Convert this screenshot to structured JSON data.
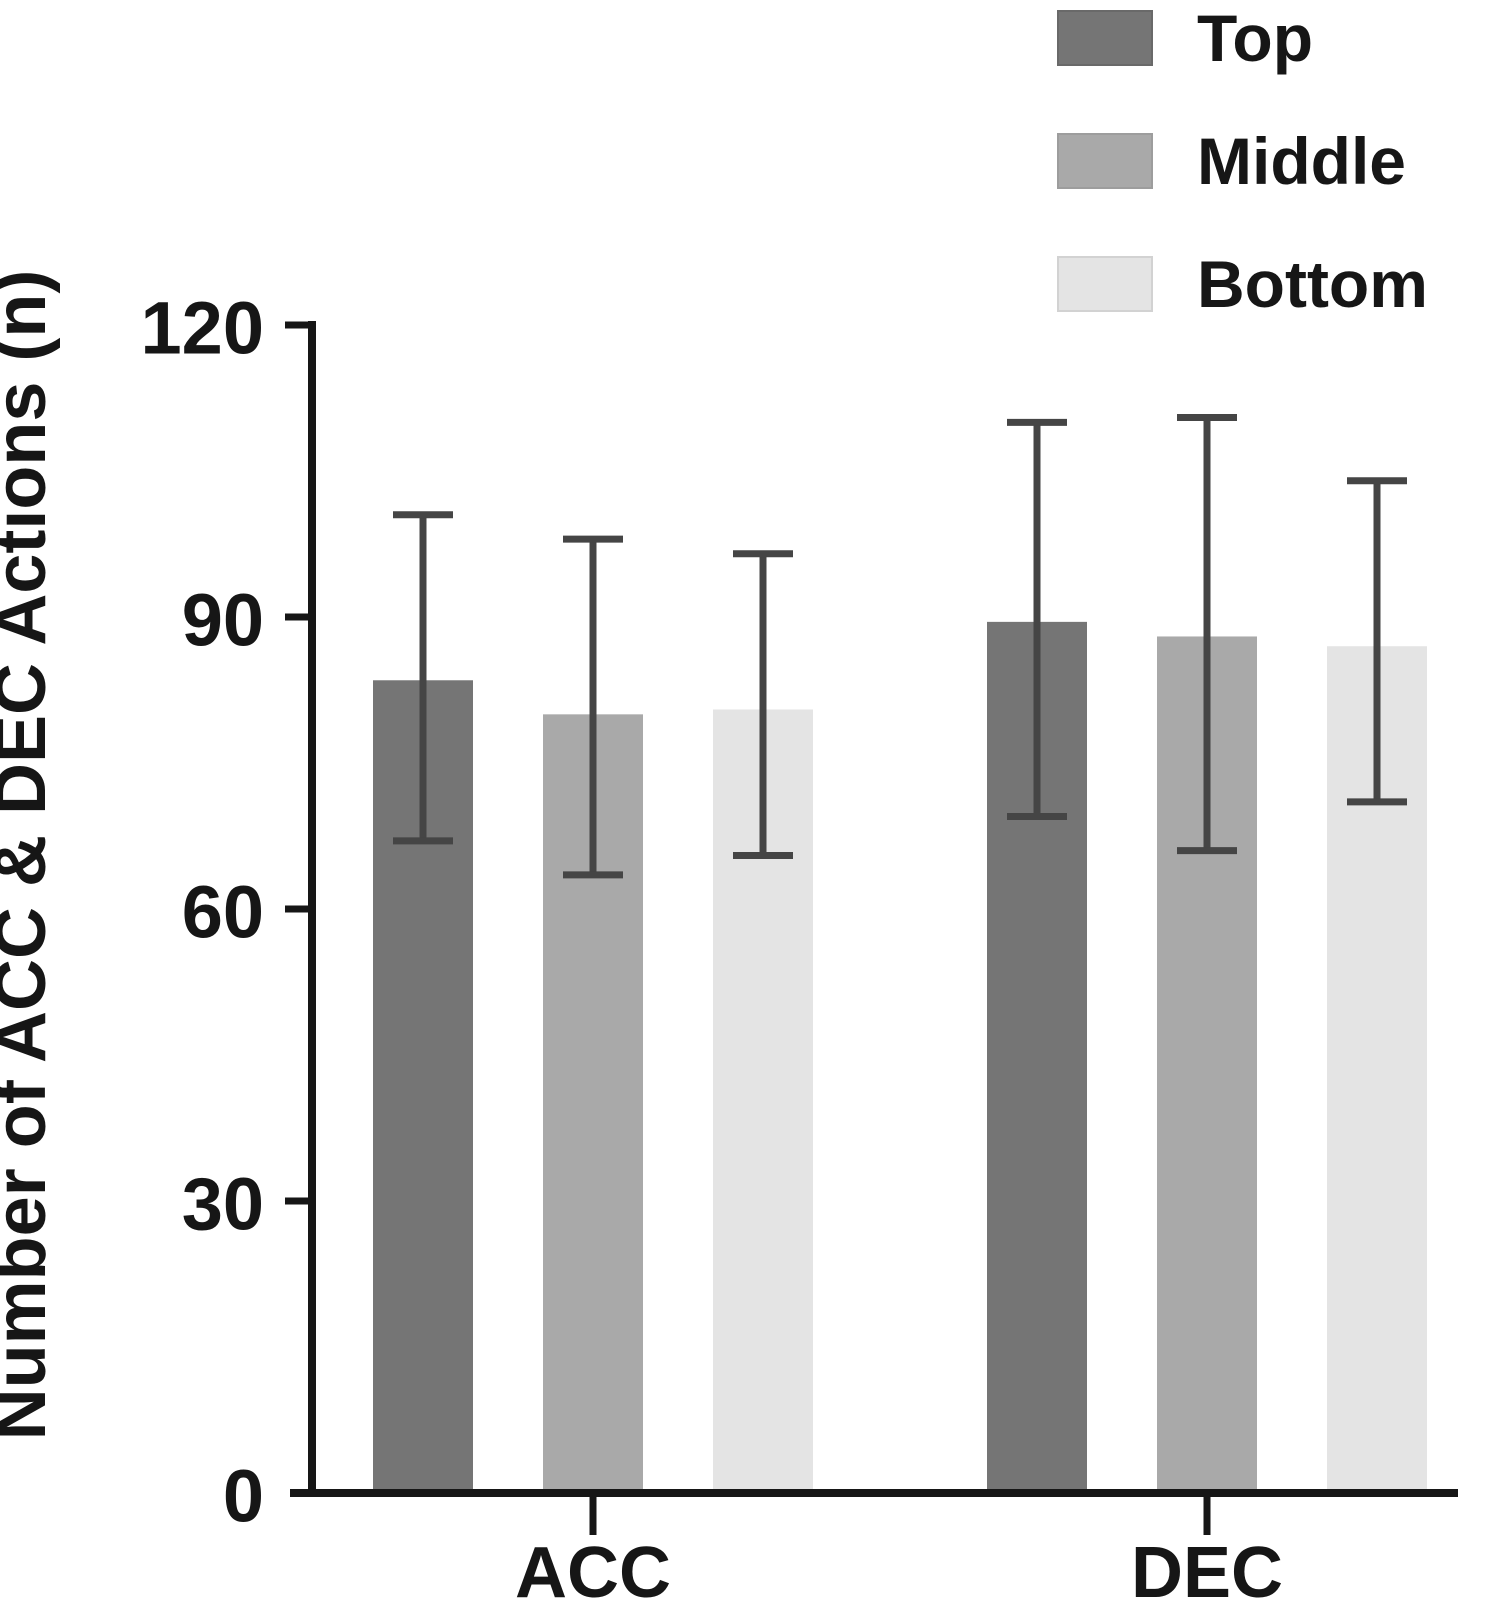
{
  "figure": {
    "background": "#ffffff"
  },
  "chart_data": {
    "type": "bar",
    "title": "",
    "categories": [
      "ACC",
      "DEC"
    ],
    "series": [
      {
        "name": "Top",
        "color": "#757575",
        "swatch_border": "#696969",
        "values": [
          83.5,
          89.5
        ],
        "error_upper": [
          100.5,
          110
        ],
        "error_lower": [
          67,
          69.5
        ]
      },
      {
        "name": "Middle",
        "color": "#a9a9a9",
        "swatch_border": "#9d9d9d",
        "values": [
          80,
          88
        ],
        "error_upper": [
          98,
          110.5
        ],
        "error_lower": [
          63.5,
          66
        ]
      },
      {
        "name": "Bottom",
        "color": "#e4e4e4",
        "swatch_border": "#d2d2d2",
        "values": [
          80.5,
          87
        ],
        "error_upper": [
          96.5,
          104
        ],
        "error_lower": [
          65.5,
          71
        ]
      }
    ],
    "xlabel": "",
    "ylabel": "Number of ACC & DEC Actions (n)",
    "ylim": [
      0,
      120
    ],
    "yticks": [
      0,
      30,
      60,
      90,
      120
    ],
    "grid": false,
    "legend_position": "top-right",
    "error_bars": "symmetric-caps-over-bars",
    "colors": {
      "axis": "#161616",
      "text": "#161616",
      "error_bar": "#454545",
      "background": "#ffffff"
    }
  }
}
